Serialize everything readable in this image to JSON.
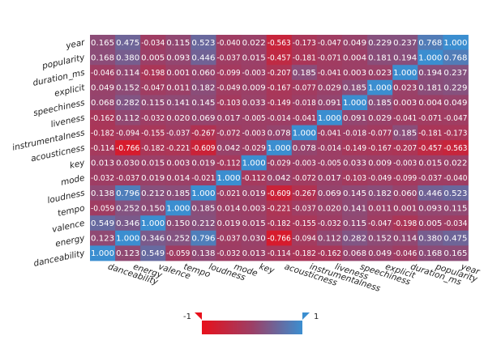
{
  "chart_data": {
    "type": "heatmap",
    "rows": [
      "year",
      "popularity",
      "duration_ms",
      "explicit",
      "speechiness",
      "liveness",
      "instrumentalness",
      "acousticness",
      "key",
      "mode",
      "loudness",
      "tempo",
      "valence",
      "energy",
      "danceability"
    ],
    "columns": [
      "danceability",
      "energy",
      "valence",
      "tempo",
      "loudness",
      "mode",
      "key",
      "acousticness",
      "instrumentalness",
      "liveness",
      "speechiness",
      "explicit",
      "duration_ms",
      "popularity",
      "year"
    ],
    "values": [
      [
        0.165,
        0.475,
        -0.034,
        0.115,
        0.523,
        -0.04,
        0.022,
        -0.563,
        -0.173,
        -0.047,
        0.049,
        0.229,
        0.237,
        0.768,
        1.0
      ],
      [
        0.168,
        0.38,
        0.005,
        0.093,
        0.446,
        -0.037,
        0.015,
        -0.457,
        -0.181,
        -0.071,
        0.004,
        0.181,
        0.194,
        1.0,
        0.768
      ],
      [
        -0.046,
        0.114,
        -0.198,
        0.001,
        0.06,
        -0.099,
        -0.003,
        -0.207,
        0.185,
        -0.041,
        0.003,
        0.023,
        1.0,
        0.194,
        0.237
      ],
      [
        0.049,
        0.152,
        -0.047,
        0.011,
        0.182,
        -0.049,
        0.009,
        -0.167,
        -0.077,
        0.029,
        0.185,
        1.0,
        0.023,
        0.181,
        0.229
      ],
      [
        0.068,
        0.282,
        0.115,
        0.141,
        0.145,
        -0.103,
        0.033,
        -0.149,
        -0.018,
        0.091,
        1.0,
        0.185,
        0.003,
        0.004,
        0.049
      ],
      [
        -0.162,
        0.112,
        -0.032,
        0.02,
        0.069,
        0.017,
        -0.005,
        -0.014,
        -0.041,
        1.0,
        0.091,
        0.029,
        -0.041,
        -0.071,
        -0.047
      ],
      [
        -0.182,
        -0.094,
        -0.155,
        -0.037,
        -0.267,
        -0.072,
        -0.003,
        0.078,
        1.0,
        -0.041,
        -0.018,
        -0.077,
        0.185,
        -0.181,
        -0.173
      ],
      [
        -0.114,
        -0.766,
        -0.182,
        -0.221,
        -0.609,
        0.042,
        -0.029,
        1.0,
        0.078,
        -0.014,
        -0.149,
        -0.167,
        -0.207,
        -0.457,
        -0.563
      ],
      [
        0.013,
        0.03,
        0.015,
        0.003,
        0.019,
        -0.112,
        1.0,
        -0.029,
        -0.003,
        -0.005,
        0.033,
        0.009,
        -0.003,
        0.015,
        0.022
      ],
      [
        -0.032,
        -0.037,
        0.019,
        0.014,
        -0.021,
        1.0,
        -0.112,
        0.042,
        -0.072,
        0.017,
        -0.103,
        -0.049,
        -0.099,
        -0.037,
        -0.04
      ],
      [
        0.138,
        0.796,
        0.212,
        0.185,
        1.0,
        -0.021,
        0.019,
        -0.609,
        -0.267,
        0.069,
        0.145,
        0.182,
        0.06,
        0.446,
        0.523
      ],
      [
        -0.059,
        0.252,
        0.15,
        1.0,
        0.185,
        0.014,
        0.003,
        -0.221,
        -0.037,
        0.02,
        0.141,
        0.011,
        0.001,
        0.093,
        0.115
      ],
      [
        0.549,
        0.346,
        1.0,
        0.15,
        0.212,
        0.019,
        0.015,
        -0.182,
        -0.155,
        -0.032,
        0.115,
        -0.047,
        -0.198,
        0.005,
        -0.034
      ],
      [
        0.123,
        1.0,
        0.346,
        0.252,
        0.796,
        -0.037,
        0.03,
        -0.766,
        -0.094,
        0.112,
        0.282,
        0.152,
        0.114,
        0.38,
        0.475
      ],
      [
        1.0,
        0.123,
        0.549,
        -0.059,
        0.138,
        -0.032,
        0.013,
        -0.114,
        -0.182,
        -0.162,
        0.068,
        0.049,
        -0.046,
        0.168,
        0.165
      ]
    ],
    "value_range": [
      -1,
      1
    ],
    "colors": {
      "low": "#e8101b",
      "mid": "#9c3f66",
      "high": "#3b8ed0"
    },
    "legend": {
      "min_label": "-1",
      "max_label": "1",
      "position": "bottom"
    }
  }
}
